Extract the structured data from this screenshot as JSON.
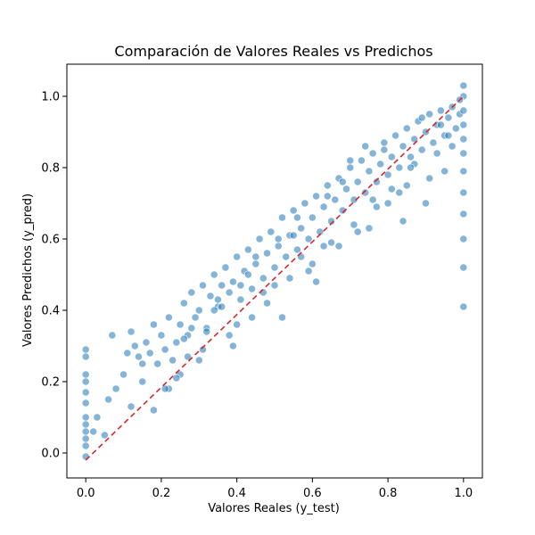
{
  "colors": {
    "point": "#1f77b4",
    "reference_line": "#d62728",
    "background": "#ffffff",
    "axis": "#000000"
  },
  "chart_data": {
    "type": "scatter",
    "title": "Comparación de Valores Reales vs Predichos",
    "xlabel": "Valores Reales (y_test)",
    "ylabel": "Valores Predichos (y_pred)",
    "xlim": [
      -0.05,
      1.05
    ],
    "ylim": [
      -0.07,
      1.09
    ],
    "x_ticks": [
      0.0,
      0.2,
      0.4,
      0.6,
      0.8,
      1.0
    ],
    "x_tick_labels": [
      "0.0",
      "0.2",
      "0.4",
      "0.6",
      "0.8",
      "1.0"
    ],
    "y_ticks": [
      0.0,
      0.2,
      0.4,
      0.6,
      0.8,
      1.0
    ],
    "y_tick_labels": [
      "0.0",
      "0.2",
      "0.4",
      "0.6",
      "0.8",
      "1.0"
    ],
    "grid": false,
    "legend": "none",
    "reference_line": {
      "style": "dashed",
      "x": [
        0.0,
        1.0
      ],
      "y": [
        -0.02,
        1.0
      ]
    },
    "series": [
      {
        "x": [
          0.0,
          0.0,
          0.0,
          0.0,
          0.0,
          0.0,
          0.0,
          0.0,
          0.0,
          0.0,
          0.0,
          0.0,
          0.02,
          0.03,
          0.05,
          0.06,
          0.07,
          0.08,
          0.1,
          0.11,
          0.12,
          0.12,
          0.13,
          0.14,
          0.15,
          0.15,
          0.16,
          0.17,
          0.18,
          0.19,
          0.2,
          0.21,
          0.22,
          0.23,
          0.24,
          0.25,
          0.26,
          0.27,
          0.28,
          0.29,
          0.3,
          0.31,
          0.32,
          0.33,
          0.34,
          0.35,
          0.36,
          0.37,
          0.38,
          0.39,
          0.4,
          0.41,
          0.42,
          0.43,
          0.44,
          0.45,
          0.46,
          0.47,
          0.48,
          0.49,
          0.5,
          0.51,
          0.52,
          0.53,
          0.54,
          0.55,
          0.56,
          0.57,
          0.58,
          0.59,
          0.6,
          0.61,
          0.62,
          0.63,
          0.64,
          0.65,
          0.66,
          0.67,
          0.68,
          0.69,
          0.7,
          0.71,
          0.72,
          0.73,
          0.74,
          0.75,
          0.76,
          0.77,
          0.78,
          0.79,
          0.8,
          0.81,
          0.82,
          0.83,
          0.84,
          0.85,
          0.86,
          0.87,
          0.88,
          0.89,
          0.9,
          0.91,
          0.92,
          0.93,
          0.94,
          0.95,
          0.96,
          0.97,
          0.98,
          0.99,
          1.0,
          1.0,
          1.0,
          1.0,
          1.0,
          1.0,
          1.0,
          1.0,
          1.0,
          1.0,
          1.0,
          1.0,
          0.18,
          0.22,
          0.25,
          0.28,
          0.31,
          0.34,
          0.38,
          0.41,
          0.44,
          0.48,
          0.51,
          0.54,
          0.57,
          0.61,
          0.64,
          0.67,
          0.71,
          0.74,
          0.77,
          0.81,
          0.84,
          0.87,
          0.91,
          0.94,
          0.97,
          0.24,
          0.27,
          0.32,
          0.36,
          0.39,
          0.43,
          0.47,
          0.52,
          0.56,
          0.59,
          0.63,
          0.68,
          0.72,
          0.76,
          0.79,
          0.83,
          0.86,
          0.89,
          0.93,
          0.96,
          0.99,
          0.21,
          0.26,
          0.3,
          0.35,
          0.4,
          0.45,
          0.5,
          0.55,
          0.6,
          0.65,
          0.7,
          0.75,
          0.8,
          0.85,
          0.9,
          0.95
        ],
        "y": [
          0.29,
          0.27,
          0.22,
          0.2,
          0.17,
          0.14,
          0.1,
          0.08,
          0.06,
          0.04,
          0.02,
          -0.01,
          0.06,
          0.1,
          0.05,
          0.15,
          0.33,
          0.18,
          0.22,
          0.28,
          0.13,
          0.34,
          0.3,
          0.27,
          0.2,
          0.25,
          0.31,
          0.28,
          0.36,
          0.25,
          0.33,
          0.29,
          0.38,
          0.26,
          0.31,
          0.36,
          0.42,
          0.33,
          0.45,
          0.38,
          0.4,
          0.47,
          0.35,
          0.44,
          0.5,
          0.41,
          0.47,
          0.52,
          0.45,
          0.48,
          0.55,
          0.43,
          0.51,
          0.57,
          0.46,
          0.53,
          0.6,
          0.49,
          0.56,
          0.62,
          0.52,
          0.58,
          0.66,
          0.55,
          0.61,
          0.68,
          0.57,
          0.63,
          0.7,
          0.6,
          0.66,
          0.72,
          0.62,
          0.69,
          0.75,
          0.65,
          0.71,
          0.77,
          0.68,
          0.74,
          0.8,
          0.71,
          0.76,
          0.82,
          0.73,
          0.79,
          0.84,
          0.76,
          0.81,
          0.87,
          0.78,
          0.83,
          0.89,
          0.8,
          0.86,
          0.91,
          0.83,
          0.88,
          0.93,
          0.85,
          0.9,
          0.95,
          0.87,
          0.92,
          0.96,
          0.89,
          0.94,
          0.97,
          0.91,
          0.95,
          1.03,
          1.0,
          0.96,
          0.92,
          0.88,
          0.84,
          0.79,
          0.73,
          0.67,
          0.6,
          0.52,
          0.41,
          0.12,
          0.18,
          0.22,
          0.35,
          0.29,
          0.4,
          0.33,
          0.47,
          0.38,
          0.42,
          0.6,
          0.49,
          0.55,
          0.48,
          0.72,
          0.58,
          0.64,
          0.86,
          0.69,
          0.74,
          0.65,
          0.81,
          0.77,
          0.92,
          0.86,
          0.21,
          0.27,
          0.34,
          0.41,
          0.3,
          0.5,
          0.45,
          0.38,
          0.66,
          0.51,
          0.58,
          0.76,
          0.62,
          0.71,
          0.85,
          0.73,
          0.8,
          0.94,
          0.84,
          0.89,
          0.99,
          0.18,
          0.32,
          0.26,
          0.43,
          0.36,
          0.55,
          0.47,
          0.61,
          0.53,
          0.59,
          0.82,
          0.63,
          0.7,
          0.75,
          0.7,
          0.79
        ]
      }
    ]
  }
}
